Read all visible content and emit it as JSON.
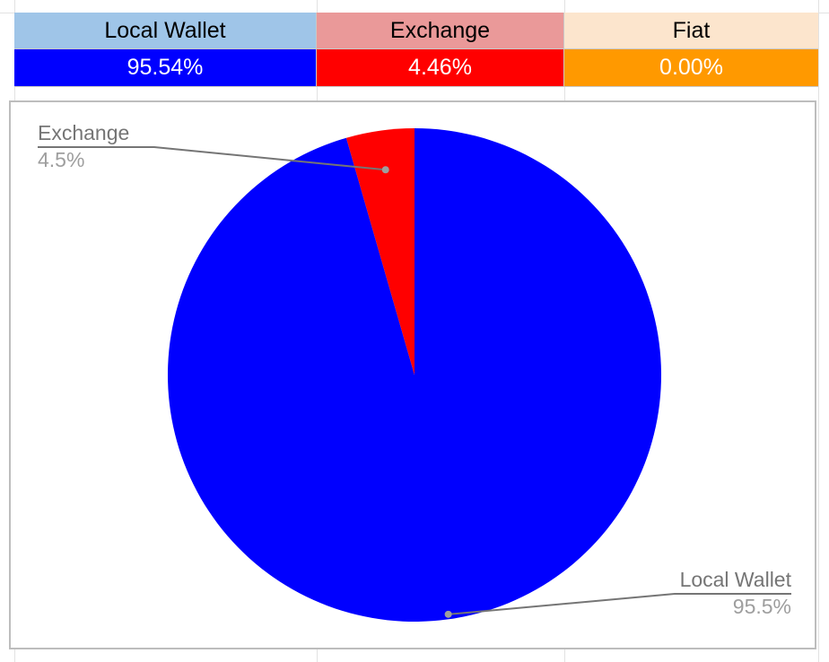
{
  "table": {
    "headers": [
      "Local Wallet",
      "Exchange",
      "Fiat"
    ],
    "values": [
      "95.54%",
      "4.46%",
      "0.00%"
    ],
    "header_colors": [
      "#9fc5e8",
      "#ea9999",
      "#fce5cd"
    ],
    "value_colors": [
      "#0000ff",
      "#ff0000",
      "#ff9900"
    ]
  },
  "chart_data": {
    "type": "pie",
    "slices": [
      {
        "label": "Local Wallet",
        "value": 95.54,
        "display": "95.5%",
        "color": "#0000ff"
      },
      {
        "label": "Exchange",
        "value": 4.46,
        "display": "4.5%",
        "color": "#ff0000"
      },
      {
        "label": "Fiat",
        "value": 0.0,
        "display": "",
        "color": "#ff9900"
      }
    ],
    "legend": "labels with leader lines"
  }
}
